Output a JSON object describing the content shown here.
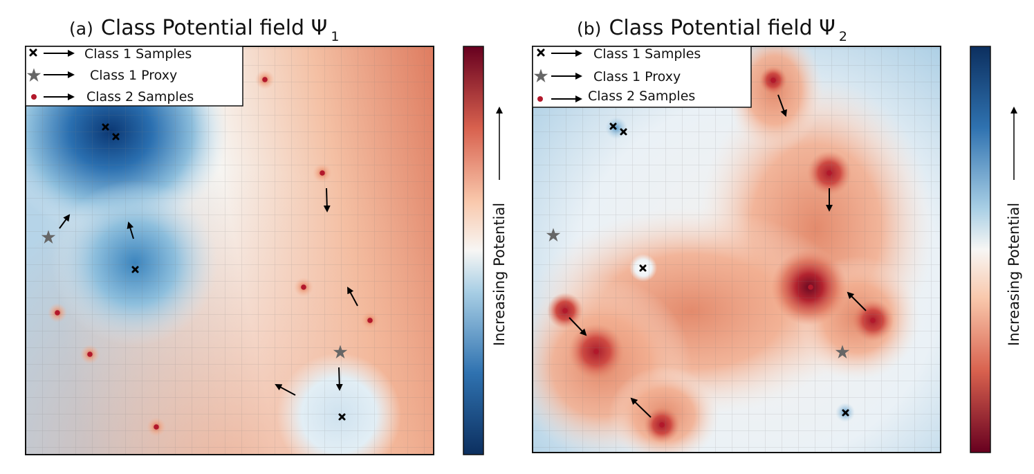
{
  "colors": {
    "blue_deep": "#0e3f7a",
    "blue_mid": "#3e86bf",
    "white_mid": "#f7f6f4",
    "red_mid": "#d86e57",
    "red_deep": "#67001f",
    "sample2_dot": "#b2182b",
    "proxy_star": "#666666",
    "marker_x": "#000000"
  },
  "panels": [
    {
      "prefix": "(a)",
      "title": "Class Potential field Ψ",
      "subscript": "1",
      "legend": [
        {
          "icon": "x-marker-icon",
          "label": "Class 1 Samples"
        },
        {
          "icon": "star-icon",
          "label": "Class 1 Proxy"
        },
        {
          "icon": "dot-icon",
          "label": "Class 2 Samples"
        }
      ],
      "colorbar_label": "Increasing Potential",
      "colorbar_direction": "blue-bottom-to-red-top"
    },
    {
      "prefix": "(b)",
      "title": "Class Potential field Ψ",
      "subscript": "2",
      "legend": [
        {
          "icon": "x-marker-icon",
          "label": "Class 1 Samples"
        },
        {
          "icon": "star-icon",
          "label": "Class 1 Proxy"
        },
        {
          "icon": "dot-icon",
          "label": "Class 2 Samples"
        }
      ],
      "colorbar_label": "Increasing Potential",
      "colorbar_direction": "red-bottom-to-blue-top"
    }
  ]
}
